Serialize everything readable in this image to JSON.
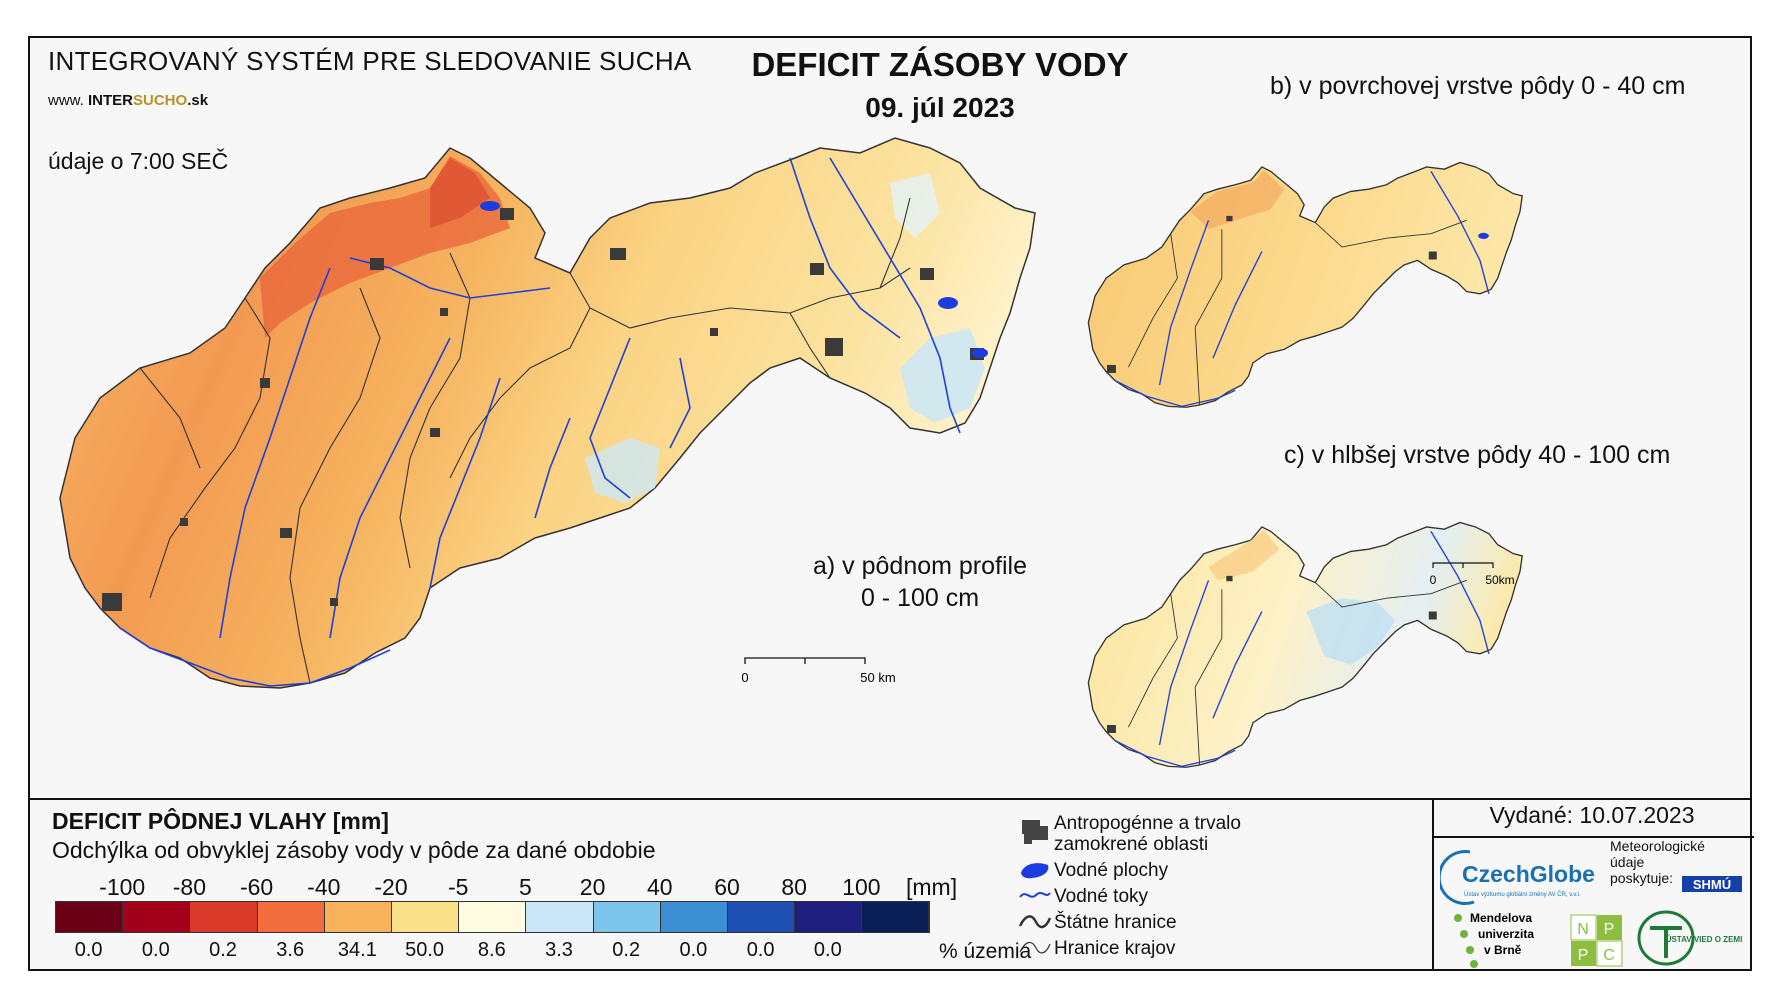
{
  "header": {
    "system_title": "INTEGROVANÝ SYSTÉM PRE SLEDOVANIE SUCHA",
    "website_prefix": "www.",
    "website_main": "INTER",
    "website_accent": "SUCHO",
    "website_suffix": ".sk",
    "observation_time": "údaje o 7:00 SEČ",
    "main_title": "DEFICIT ZÁSOBY VODY",
    "date": "09. júl 2023"
  },
  "maps": {
    "main": {
      "label_line1": "a) v pôdnom profile",
      "label_line2": "0 - 100 cm",
      "scale_start": "0",
      "scale_end": "50 km"
    },
    "surface": {
      "label": "b) v povrchovej vrstve pôdy 0 - 40 cm"
    },
    "deep": {
      "label": "c) v hlbšej vrstve pôdy 40 - 100 cm",
      "scale_start": "0",
      "scale_end": "50km"
    }
  },
  "legend": {
    "title": "DEFICIT PÔDNEJ VLAHY [mm]",
    "subtitle": "Odchýlka od obvyklej zásoby vody v pôde za dané obdobie",
    "unit": "[mm]",
    "ticks": [
      "-100",
      "-80",
      "-60",
      "-40",
      "-20",
      "-5",
      "5",
      "20",
      "40",
      "60",
      "80",
      "100"
    ],
    "colors": [
      "#6b0016",
      "#a3001c",
      "#d93a2a",
      "#f26d3d",
      "#f9b25c",
      "#fbe08a",
      "#fffbe0",
      "#c8e6f5",
      "#7cc4ea",
      "#3d8fd4",
      "#1c4fb0",
      "#1e1e7e",
      "#0a1f55"
    ],
    "percent": [
      "0.0",
      "0.0",
      "0.2",
      "3.6",
      "34.1",
      "50.0",
      "8.6",
      "3.3",
      "0.2",
      "0.0",
      "0.0",
      "0.0"
    ],
    "percent_label": "% územia"
  },
  "symbols": {
    "urban": "Antropogénne a trvalo zamokrené oblasti",
    "water_bodies": "Vodné plochy",
    "rivers": "Vodné toky",
    "state_border": "Štátne hranice",
    "region_border": "Hranice krajov"
  },
  "issued": "Vydané: 10.07.2023",
  "credits": {
    "czechglobe": "CzechGlobe",
    "czechglobe_sub": "Ústav výzkumu globální změny AV ČR, v.v.i.",
    "meteo_line1": "Meteorologické",
    "meteo_line2": "údaje",
    "meteo_line3": "poskytuje:",
    "shmu": "SHMÚ",
    "mendel_line1": "Mendelova",
    "mendel_line2": "univerzita",
    "mendel_line3": "v Brně",
    "nppc": [
      "N",
      "P",
      "P",
      "C"
    ],
    "uvz": "ÚSTAV VIED O ZEMI"
  }
}
